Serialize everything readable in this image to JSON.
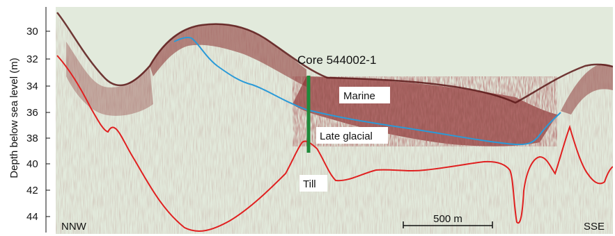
{
  "y_axis": {
    "label": "Depth below sea level (m)",
    "ticks": [
      "30",
      "32",
      "34",
      "36",
      "38",
      "40",
      "42",
      "44"
    ]
  },
  "core": {
    "label": "Core 544002-1",
    "color": "#1f8a3a"
  },
  "units": {
    "marine": "Marine",
    "late_glacial": "Late glacial",
    "till": "Till"
  },
  "directions": {
    "left": "NNW",
    "right": "SSE"
  },
  "scale_bar": {
    "label": "500 m"
  },
  "colors": {
    "background": "#e2eadc",
    "reflector": "#7a1f1f",
    "till_line": "#e02020",
    "marine_base_line": "#2a9ad8"
  }
}
